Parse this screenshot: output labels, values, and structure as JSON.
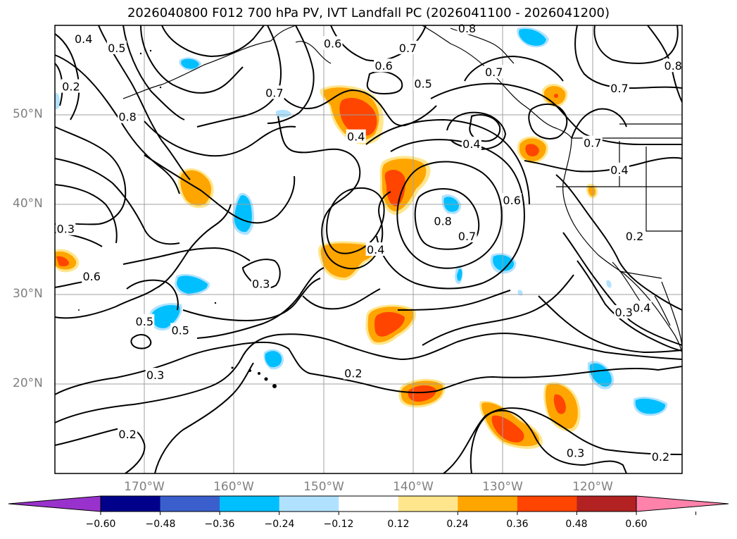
{
  "title": "2026040800 F012 700 hPa PV, IVT Landfall PC (2026041100 - 2026041200)",
  "map": {
    "projection": "equirectangular",
    "lon_range": [
      -180,
      -110
    ],
    "lat_range": [
      10,
      60
    ],
    "grid": true,
    "lat_ticks": [
      {
        "value": 50,
        "label": "50°N"
      },
      {
        "value": 40,
        "label": "40°N"
      },
      {
        "value": 30,
        "label": "30°N"
      },
      {
        "value": 20,
        "label": "20°N"
      }
    ],
    "lon_ticks": [
      {
        "value": -170,
        "label": "170°W"
      },
      {
        "value": -160,
        "label": "160°W"
      },
      {
        "value": -150,
        "label": "150°W"
      },
      {
        "value": -140,
        "label": "140°W"
      },
      {
        "value": -130,
        "label": "130°W"
      },
      {
        "value": -120,
        "label": "120°W"
      }
    ],
    "contour_labels": [
      {
        "text": "0.4",
        "lon": -176.8,
        "lat": 58.5
      },
      {
        "text": "0.5",
        "lon": -173.1,
        "lat": 57.5
      },
      {
        "text": "0.2",
        "lon": -178.2,
        "lat": 53.2
      },
      {
        "text": "0.8",
        "lon": -171.9,
        "lat": 49.8
      },
      {
        "text": "0.3",
        "lon": -178.8,
        "lat": 37.3
      },
      {
        "text": "0.6",
        "lon": -175.9,
        "lat": 32.0
      },
      {
        "text": "0.5",
        "lon": -170.0,
        "lat": 27.0
      },
      {
        "text": "0.5",
        "lon": -166.0,
        "lat": 26.0
      },
      {
        "text": "0.3",
        "lon": -157.0,
        "lat": 31.2
      },
      {
        "text": "0.7",
        "lon": -155.5,
        "lat": 52.5
      },
      {
        "text": "0.6",
        "lon": -149.0,
        "lat": 58.0
      },
      {
        "text": "0.6",
        "lon": -143.3,
        "lat": 55.5
      },
      {
        "text": "0.7",
        "lon": -140.6,
        "lat": 57.5
      },
      {
        "text": "0.5",
        "lon": -138.9,
        "lat": 53.5
      },
      {
        "text": "0.8",
        "lon": -134.0,
        "lat": 59.7
      },
      {
        "text": "0.4",
        "lon": -146.4,
        "lat": 47.6
      },
      {
        "text": "0.4",
        "lon": -133.5,
        "lat": 46.8
      },
      {
        "text": "0.7",
        "lon": -131.0,
        "lat": 54.8
      },
      {
        "text": "0.4",
        "lon": -144.2,
        "lat": 35.0
      },
      {
        "text": "0.8",
        "lon": -136.7,
        "lat": 38.2
      },
      {
        "text": "0.7",
        "lon": -134.0,
        "lat": 36.5
      },
      {
        "text": "0.6",
        "lon": -129.0,
        "lat": 40.5
      },
      {
        "text": "0.8",
        "lon": -111.0,
        "lat": 55.5
      },
      {
        "text": "0.7",
        "lon": -117.0,
        "lat": 53.0
      },
      {
        "text": "0.7",
        "lon": -120.0,
        "lat": 46.9
      },
      {
        "text": "0.4",
        "lon": -117.0,
        "lat": 43.9
      },
      {
        "text": "0.2",
        "lon": -115.3,
        "lat": 36.5
      },
      {
        "text": "0.3",
        "lon": -116.5,
        "lat": 28.0
      },
      {
        "text": "0.4",
        "lon": -114.5,
        "lat": 28.5
      },
      {
        "text": "0.3",
        "lon": -168.8,
        "lat": 21.0
      },
      {
        "text": "0.2",
        "lon": -146.7,
        "lat": 21.2
      },
      {
        "text": "0.2",
        "lon": -171.9,
        "lat": 14.4
      },
      {
        "text": "0.3",
        "lon": -121.9,
        "lat": 12.3
      },
      {
        "text": "0.2",
        "lon": -112.4,
        "lat": 11.9
      }
    ]
  },
  "colorbar": {
    "extend": "both",
    "colors": [
      "#9932cc",
      "#00008b",
      "#3a5fcd",
      "#00bfff",
      "#b0e2ff",
      "#ffffff",
      "#ffe68c",
      "#ffa500",
      "#ff4500",
      "#b22222",
      "#ff82ab"
    ],
    "tick_labels": [
      "−0.60",
      "−0.48",
      "−0.36",
      "−0.24",
      "−0.12",
      "0.12",
      "0.24",
      "0.36",
      "0.48",
      "0.60"
    ]
  }
}
